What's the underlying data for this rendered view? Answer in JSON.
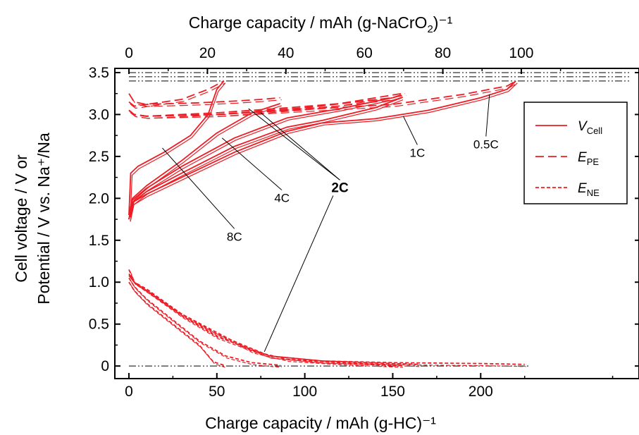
{
  "chart_data": {
    "type": "line",
    "xlabel": "Charge capacity / mAh (g-HC)⁻¹",
    "x2label": "Charge capacity / mAh (g-NaCrO",
    "x2label_sub": "2",
    "x2label_tail": ")⁻¹",
    "ylabel_line1": "Cell voltage / V or",
    "ylabel_line2": "Potential / V vs. Na⁺/Na",
    "xlim": [
      -8,
      290
    ],
    "ylim": [
      -0.15,
      3.55
    ],
    "x2lim": [
      -3.6,
      130
    ],
    "x_ticks": [
      "0",
      "50",
      "100",
      "150",
      "200"
    ],
    "x_tick_values": [
      0,
      50,
      100,
      150,
      200
    ],
    "x2_ticks": [
      "0",
      "20",
      "40",
      "60",
      "80",
      "100"
    ],
    "x2_tick_values": [
      0,
      20,
      40,
      60,
      80,
      100
    ],
    "y_ticks": [
      "0",
      "0.5",
      "1.0",
      "1.5",
      "2.0",
      "2.5",
      "3.0",
      "3.5"
    ],
    "y_tick_values": [
      0,
      0.5,
      1.0,
      1.5,
      2.0,
      2.5,
      3.0,
      3.5
    ],
    "reference_lines": [
      3.5,
      3.45,
      3.4,
      0
    ],
    "legend": {
      "position": "top-right",
      "entries": [
        {
          "label": "V",
          "sub": "Cell",
          "style": "solid"
        },
        {
          "label": "E",
          "sub": "PE",
          "style": "dashed"
        },
        {
          "label": "E",
          "sub": "NE",
          "style": "dotted"
        }
      ]
    },
    "series": [
      {
        "rate": "0.5C",
        "kind": "V_cell",
        "x": [
          0,
          2,
          10,
          30,
          60,
          90,
          110,
          140,
          170,
          200,
          215,
          220
        ],
        "y": [
          1.75,
          1.95,
          2.05,
          2.25,
          2.55,
          2.8,
          2.9,
          2.95,
          3.05,
          3.2,
          3.3,
          3.4
        ]
      },
      {
        "rate": "0.5C",
        "kind": "E_PE",
        "x": [
          0,
          3,
          10,
          50,
          100,
          150,
          190,
          215,
          220
        ],
        "y": [
          3.05,
          3.0,
          2.98,
          3.0,
          3.06,
          3.12,
          3.24,
          3.34,
          3.4
        ]
      },
      {
        "rate": "0.5C",
        "kind": "E_NE",
        "x": [
          0,
          3,
          10,
          30,
          50,
          80,
          110,
          150,
          200,
          225
        ],
        "y": [
          1.15,
          1.0,
          0.92,
          0.62,
          0.38,
          0.12,
          0.06,
          0.04,
          0.03,
          0.02
        ]
      },
      {
        "rate": "1C",
        "kind": "V_cell",
        "x": [
          0,
          2,
          10,
          30,
          60,
          90,
          110,
          140,
          155
        ],
        "y": [
          1.75,
          1.95,
          2.08,
          2.3,
          2.62,
          2.85,
          2.93,
          3.08,
          3.2
        ]
      },
      {
        "rate": "1C",
        "kind": "E_PE",
        "x": [
          0,
          3,
          10,
          50,
          100,
          150,
          157
        ],
        "y": [
          3.05,
          3.0,
          2.98,
          3.0,
          3.08,
          3.2,
          3.25
        ]
      },
      {
        "rate": "1C",
        "kind": "E_NE",
        "x": [
          0,
          3,
          10,
          30,
          50,
          80,
          110,
          150,
          165
        ],
        "y": [
          1.1,
          1.0,
          0.9,
          0.6,
          0.35,
          0.12,
          0.06,
          0.03,
          0.02
        ]
      },
      {
        "rate": "2C",
        "kind": "V_cell",
        "x": [
          0,
          2,
          10,
          30,
          60,
          90,
          120,
          150,
          155
        ],
        "y": [
          1.75,
          1.98,
          2.12,
          2.38,
          2.72,
          2.96,
          3.07,
          3.2,
          3.23
        ]
      },
      {
        "rate": "2C",
        "kind": "E_PE",
        "x": [
          0,
          3,
          10,
          50,
          90,
          120,
          155
        ],
        "y": [
          3.05,
          3.0,
          2.98,
          3.02,
          3.08,
          3.13,
          3.25
        ]
      },
      {
        "rate": "2C",
        "kind": "E_NE",
        "x": [
          0,
          3,
          10,
          30,
          50,
          70,
          90,
          120,
          155
        ],
        "y": [
          1.08,
          1.0,
          0.9,
          0.62,
          0.4,
          0.18,
          0.08,
          0.04,
          0.01
        ]
      },
      {
        "rate": "4C",
        "kind": "V_cell",
        "x": [
          0,
          2,
          10,
          30,
          50,
          70,
          86
        ],
        "y": [
          1.8,
          2.0,
          2.15,
          2.45,
          2.78,
          3.02,
          3.13
        ]
      },
      {
        "rate": "4C",
        "kind": "E_PE",
        "x": [
          0,
          3,
          10,
          40,
          60,
          75,
          86
        ],
        "y": [
          3.15,
          3.1,
          3.12,
          3.14,
          3.16,
          3.18,
          3.2
        ]
      },
      {
        "rate": "4C",
        "kind": "E_NE",
        "x": [
          0,
          3,
          10,
          25,
          40,
          55,
          70,
          86
        ],
        "y": [
          1.05,
          0.95,
          0.8,
          0.55,
          0.3,
          0.12,
          0.04,
          0.01
        ]
      },
      {
        "rate": "8C",
        "kind": "V_cell",
        "x": [
          0,
          1,
          5,
          20,
          35,
          45,
          50,
          54
        ],
        "y": [
          1.8,
          2.3,
          2.38,
          2.55,
          2.75,
          3.0,
          3.3,
          3.4
        ]
      },
      {
        "rate": "8C",
        "kind": "E_PE",
        "x": [
          0,
          3,
          10,
          30,
          45,
          54
        ],
        "y": [
          3.25,
          3.15,
          3.12,
          3.18,
          3.3,
          3.4
        ]
      },
      {
        "rate": "8C",
        "kind": "E_NE",
        "x": [
          0,
          3,
          10,
          25,
          40,
          48,
          54
        ],
        "y": [
          1.0,
          0.9,
          0.75,
          0.5,
          0.25,
          0.05,
          0.01
        ]
      }
    ],
    "annotations": [
      {
        "label": "8C",
        "bold": false,
        "text_at": [
          60,
          1.52
        ],
        "leaders": [
          [
            19,
            2.6
          ]
        ]
      },
      {
        "label": "4C",
        "bold": false,
        "text_at": [
          87,
          1.98
        ],
        "leaders": [
          [
            53,
            2.72
          ]
        ]
      },
      {
        "label": "2C",
        "bold": true,
        "text_at": [
          120,
          2.1
        ],
        "leaders": [
          [
            68,
            3.07
          ],
          [
            75,
            3.02
          ],
          [
            77,
            0.17
          ]
        ]
      },
      {
        "label": "1C",
        "bold": false,
        "text_at": [
          164,
          2.52
        ],
        "leaders": [
          [
            156,
            2.98
          ]
        ]
      },
      {
        "label": "0.5C",
        "bold": false,
        "text_at": [
          203,
          2.62
        ],
        "leaders": [
          [
            205,
            3.24
          ]
        ]
      }
    ]
  }
}
